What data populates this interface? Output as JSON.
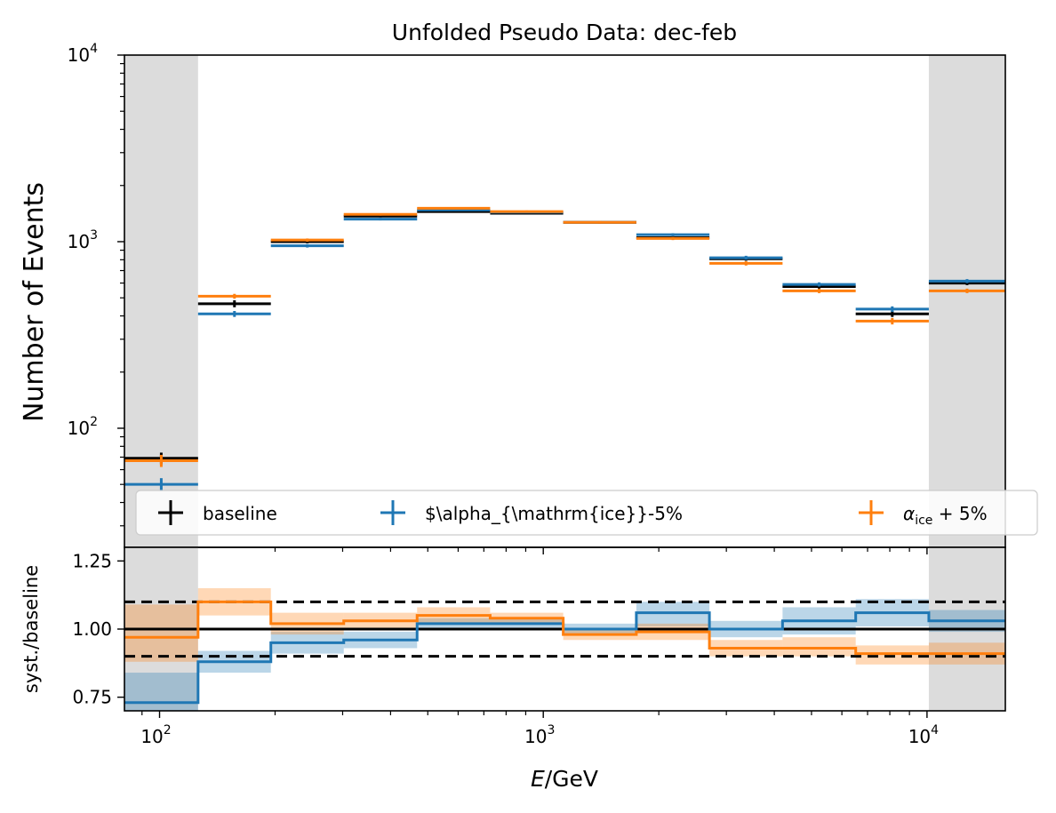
{
  "chart_data": {
    "type": "step-histogram",
    "title": "Unfolded Pseudo Data: dec-feb",
    "xlabel": "E/GeV",
    "x_scale": "log",
    "xlim": [
      81,
      16000
    ],
    "x_ticks": [
      {
        "value": 100,
        "base": "10",
        "exp": "2"
      },
      {
        "value": 1000,
        "base": "10",
        "exp": "3"
      },
      {
        "value": 10000,
        "base": "10",
        "exp": "4"
      }
    ],
    "bin_edges": [
      81,
      126,
      195,
      302,
      469,
      727,
      1127,
      1748,
      2710,
      4203,
      6519,
      10110,
      16000
    ],
    "shaded_regions": [
      [
        81,
        126
      ],
      [
        10110,
        16000
      ]
    ],
    "grid": false,
    "legend": {
      "placement": "lower-center of top panel",
      "columns": 3
    },
    "top_panel": {
      "ylabel": "Number of Events",
      "y_scale": "log",
      "ylim": [
        23,
        10000
      ],
      "y_ticks": [
        {
          "value": 100,
          "base": "10",
          "exp": "2"
        },
        {
          "value": 1000,
          "base": "10",
          "exp": "3"
        },
        {
          "value": 10000,
          "base": "10",
          "exp": "4"
        }
      ],
      "series": [
        {
          "name": "baseline",
          "legend_label": "baseline",
          "color": "#000000",
          "values": [
            69,
            465,
            1000,
            1370,
            1450,
            1420,
            1270,
            1050,
            810,
            575,
            410,
            600
          ],
          "errors": [
            5,
            20,
            20,
            20,
            20,
            20,
            20,
            20,
            20,
            15,
            15,
            15
          ]
        },
        {
          "name": "alpha_ice-5%",
          "legend_label": "$\\alpha_{\\mathrm{ice}}-5%",
          "color": "#1f77b4",
          "values": [
            50,
            410,
            950,
            1320,
            1480,
            1440,
            1270,
            1090,
            820,
            590,
            435,
            615
          ],
          "errors": [
            4,
            15,
            20,
            20,
            20,
            20,
            20,
            20,
            20,
            15,
            15,
            15
          ]
        },
        {
          "name": "alpha_ice+5%",
          "legend_label_main": "α",
          "legend_label_sub": "ice",
          "legend_label_tail": " + 5%",
          "color": "#ff7f0e",
          "values": [
            67,
            510,
            1020,
            1400,
            1510,
            1450,
            1270,
            1040,
            765,
            545,
            375,
            545
          ],
          "errors": [
            5,
            15,
            20,
            20,
            20,
            20,
            20,
            20,
            20,
            15,
            15,
            15
          ]
        }
      ]
    },
    "bottom_panel": {
      "ylabel": "syst./baseline",
      "ylim": [
        0.7,
        1.3
      ],
      "y_ticks": [
        "0.75",
        "1.00",
        "1.25"
      ],
      "reference_line": 1.0,
      "dashed_lines": [
        0.9,
        1.1
      ],
      "series": [
        {
          "name": "alpha_ice-5%",
          "color": "#1f77b4",
          "ratios": [
            0.73,
            0.88,
            0.95,
            0.96,
            1.02,
            1.02,
            1.0,
            1.06,
            1.0,
            1.03,
            1.06,
            1.03
          ],
          "band_low": [
            0.7,
            0.84,
            0.91,
            0.93,
            1.0,
            1.0,
            0.98,
            1.01,
            0.97,
            0.98,
            1.01,
            0.99
          ],
          "band_high": [
            0.84,
            0.92,
            0.99,
            0.99,
            1.04,
            1.04,
            1.02,
            1.1,
            1.03,
            1.08,
            1.11,
            1.07
          ]
        },
        {
          "name": "alpha_ice+5%",
          "color": "#ff7f0e",
          "ratios": [
            0.97,
            1.1,
            1.02,
            1.03,
            1.05,
            1.04,
            0.98,
            0.99,
            0.93,
            0.93,
            0.91,
            0.91
          ],
          "band_low": [
            0.88,
            1.05,
            0.98,
            1.0,
            1.02,
            1.02,
            0.96,
            0.96,
            0.9,
            0.9,
            0.87,
            0.87
          ],
          "band_high": [
            1.09,
            1.15,
            1.06,
            1.06,
            1.08,
            1.06,
            1.0,
            1.02,
            0.96,
            0.97,
            0.94,
            0.95
          ]
        }
      ]
    }
  }
}
